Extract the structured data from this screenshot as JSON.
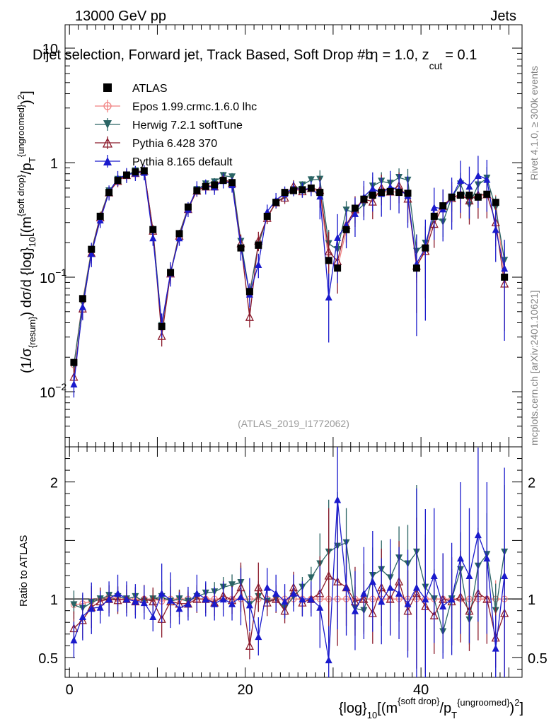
{
  "header": {
    "energy": "13000 GeV pp",
    "category": "Jets",
    "title": "Dijet selection, Forward jet, Track Based, Soft Drop #b",
    "title_tail_prefix": "= 1.0, z",
    "title_tail_sub": "cut",
    "title_tail_end": "= 0.1",
    "title_beta": "η",
    "analysis_id": "(ATLAS_2019_I1772062)",
    "side_right_top": "Rivet 4.1.0, ≥ 300k events",
    "side_right_bottom": "mcplots.cern.ch [arXiv:2401.10621]"
  },
  "legend": {
    "entries": [
      {
        "label": "ATLAS",
        "marker": "square-filled",
        "color": "#000000"
      },
      {
        "label": "Epos 1.99.crmc.1.6.0 lhc",
        "marker": "circle-open",
        "color": "#f08080"
      },
      {
        "label": "Herwig 7.2.1 softTune",
        "marker": "triangle-down-filled",
        "color": "#2a6464"
      },
      {
        "label": "Pythia 6.428 370",
        "marker": "triangle-up-open",
        "color": "#8b1a2b"
      },
      {
        "label": "Pythia 8.165 default",
        "marker": "triangle-up-filled",
        "color": "#1a1acc"
      }
    ]
  },
  "axes": {
    "ylabel_main": {
      "p1": "(1/σ",
      "p1sub": "{resum}",
      "p2": ") dσ/d {log}",
      "p2sub": "10",
      "p3": "[(m",
      "p3sup": "{soft drop}",
      "p4": "/p",
      "p4sub": "T",
      "p4sup": "{ungroomed}",
      "p5": ")",
      "p5sup": "2",
      "p6": "]"
    },
    "ylabel_ratio": "Ratio to ATLAS",
    "xlabel": {
      "p1": "{log}",
      "p1sub": "10",
      "p2": "[(m",
      "p2sup": "{soft drop}",
      "p3": "/p",
      "p3sub": "T",
      "p3sup": "{ungroomed}",
      "p4": ")",
      "p4sup": "2",
      "p5": "]"
    },
    "main_ticks": [
      {
        "base": "10",
        "exp": "−2",
        "value": 0.01
      },
      {
        "base": "10",
        "exp": "−1",
        "value": 0.1
      },
      {
        "base": "1",
        "exp": "",
        "value": 1
      },
      {
        "base": "10",
        "exp": "",
        "value": 10
      }
    ],
    "ratio_ticks": [
      "0.5",
      "1",
      "2"
    ],
    "x_ticks": [
      "0",
      "20",
      "40"
    ]
  },
  "chart_data": {
    "type": "line",
    "yscale": "log",
    "xlim": [
      -0.5,
      51.5
    ],
    "ylim_main": [
      0.0033,
      16
    ],
    "ylim_ratio": [
      0.33,
      2.3
    ],
    "x": [
      0.5,
      1.5,
      2.5,
      3.5,
      4.5,
      5.5,
      6.5,
      7.5,
      8.5,
      9.5,
      10.5,
      11.5,
      12.5,
      13.5,
      14.5,
      15.5,
      16.5,
      17.5,
      18.5,
      19.5,
      20.5,
      21.5,
      22.5,
      23.5,
      24.5,
      25.5,
      26.5,
      27.5,
      28.5,
      29.5,
      30.5,
      31.5,
      32.5,
      33.5,
      34.5,
      35.5,
      36.5,
      37.5,
      38.5,
      39.5,
      40.5,
      41.5,
      42.5,
      43.5,
      44.5,
      45.5,
      46.5,
      47.5,
      48.5,
      49.5
    ],
    "atlas": [
      0.018,
      0.065,
      0.175,
      0.34,
      0.55,
      0.7,
      0.78,
      0.83,
      0.85,
      0.26,
      0.037,
      0.11,
      0.24,
      0.41,
      0.57,
      0.62,
      0.64,
      0.7,
      0.67,
      0.18,
      0.075,
      0.19,
      0.34,
      0.45,
      0.55,
      0.57,
      0.58,
      0.6,
      0.55,
      0.14,
      0.12,
      0.26,
      0.4,
      0.48,
      0.52,
      0.55,
      0.56,
      0.55,
      0.54,
      0.12,
      0.18,
      0.34,
      0.42,
      0.5,
      0.52,
      0.52,
      0.5,
      0.53,
      0.45,
      0.1
    ],
    "series": [
      {
        "name": "Epos 1.99.crmc.1.6.0 lhc",
        "ratio": [
          0.95,
          0.96,
          0.98,
          1.0,
          1.02,
          1.0,
          1.0,
          1.0,
          1.0,
          1.0,
          0.98,
          1.0,
          1.0,
          1.0,
          1.0,
          1.0,
          1.0,
          1.0,
          1.0,
          1.0,
          1.0,
          1.0,
          1.0,
          1.0,
          1.0,
          1.0,
          1.0,
          1.0,
          1.0,
          1.0,
          1.0,
          1.0,
          1.0,
          1.0,
          1.0,
          1.0,
          1.0,
          1.0,
          1.0,
          1.0,
          1.0,
          1.0,
          1.0,
          1.0,
          1.0,
          1.0,
          1.0,
          1.0,
          1.0,
          1.0
        ]
      },
      {
        "name": "Herwig 7.2.1 softTune",
        "ratio": [
          0.95,
          0.92,
          0.97,
          1.0,
          1.03,
          1.02,
          1.0,
          1.02,
          0.98,
          1.0,
          1.02,
          0.98,
          1.0,
          0.98,
          1.02,
          1.05,
          1.06,
          1.1,
          1.12,
          1.14,
          0.95,
          1.02,
          0.98,
          1.0,
          0.92,
          1.02,
          1.1,
          1.18,
          1.3,
          1.4,
          1.45,
          1.48,
          0.92,
          0.9,
          1.2,
          1.25,
          1.18,
          1.35,
          1.3,
          1.4,
          1.1,
          1.0,
          0.72,
          1.0,
          1.25,
          0.82,
          1.28,
          1.38,
          0.9,
          1.4
        ]
      },
      {
        "name": "Pythia 6.428 370",
        "ratio": [
          0.75,
          0.82,
          0.93,
          0.98,
          1.0,
          0.99,
          1.0,
          0.98,
          1.0,
          0.98,
          0.83,
          0.98,
          0.96,
          0.96,
          1.0,
          1.0,
          0.97,
          1.03,
          0.99,
          1.1,
          0.6,
          1.1,
          0.97,
          1.0,
          0.9,
          1.1,
          0.97,
          1.0,
          1.05,
          1.2,
          1.15,
          1.1,
          0.98,
          1.0,
          0.88,
          1.1,
          1.0,
          1.15,
          0.9,
          1.05,
          0.94,
          0.86,
          1.0,
          0.98,
          1.02,
          0.9,
          1.05,
          1.0,
          0.67,
          0.88
        ]
      },
      {
        "name": "Pythia 8.165 default",
        "ratio": [
          0.65,
          0.85,
          0.92,
          0.93,
          1.0,
          1.05,
          1.0,
          0.98,
          0.97,
          0.85,
          1.05,
          0.99,
          0.92,
          0.96,
          1.05,
          1.0,
          0.96,
          1.0,
          0.96,
          1.02,
          0.95,
          0.68,
          1.1,
          1.05,
          0.98,
          1.05,
          1.0,
          1.0,
          0.93,
          0.48,
          1.85,
          1.1,
          0.9,
          1.05,
          1.15,
          0.98,
          1.1,
          1.05,
          0.96,
          1.1,
          1.0,
          1.2,
          0.94,
          1.0,
          1.35,
          1.2,
          1.55,
          1.35,
          0.58,
          1.2
        ]
      }
    ]
  }
}
